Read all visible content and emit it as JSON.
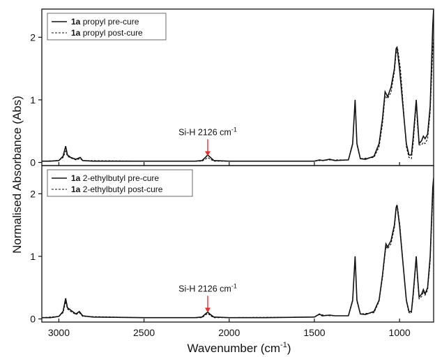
{
  "chart_data": {
    "type": "line",
    "xlabel": "Wavenumber (cm",
    "xlabel_sup": "-1",
    "xlabel_tail": ")",
    "ylabel": "Normalised Absorbance (Abs)",
    "xlim": [
      3100,
      800
    ],
    "x_reversed": true,
    "x_ticks": [
      "3000",
      "2500",
      "2000",
      "1500",
      "1000"
    ],
    "x_tick_values": [
      3000,
      2500,
      2000,
      1500,
      1000
    ],
    "colors": {
      "axis": "#111111",
      "line": "#111111",
      "arrow": "#e03030"
    },
    "panels": [
      {
        "ylim": [
          -0.05,
          2.45
        ],
        "y_ticks": [
          "0",
          "1",
          "2"
        ],
        "y_tick_values": [
          0,
          1,
          2
        ],
        "legend_position": "top-left",
        "legend": [
          {
            "bold": "1a",
            "text": " propyl pre-cure",
            "style": "solid"
          },
          {
            "bold": "1a",
            "text": " propyl post-cure",
            "style": "dashed"
          }
        ],
        "annotation": {
          "label": "Si-H 2126 cm",
          "sup": "-1",
          "x": 2126,
          "y_tip": 0.1,
          "y_tail": 0.37
        },
        "series": [
          {
            "style": "solid",
            "points": [
              [
                3100,
                0.02
              ],
              [
                3050,
                0.02
              ],
              [
                3000,
                0.03
              ],
              [
                2975,
                0.1
              ],
              [
                2960,
                0.26
              ],
              [
                2950,
                0.12
              ],
              [
                2930,
                0.08
              ],
              [
                2900,
                0.05
              ],
              [
                2875,
                0.08
              ],
              [
                2860,
                0.03
              ],
              [
                2800,
                0.02
              ],
              [
                2500,
                0.02
              ],
              [
                2200,
                0.02
              ],
              [
                2160,
                0.03
              ],
              [
                2140,
                0.08
              ],
              [
                2126,
                0.12
              ],
              [
                2110,
                0.08
              ],
              [
                2090,
                0.03
              ],
              [
                2000,
                0.02
              ],
              [
                1800,
                0.02
              ],
              [
                1500,
                0.02
              ],
              [
                1470,
                0.04
              ],
              [
                1450,
                0.03
              ],
              [
                1410,
                0.05
              ],
              [
                1380,
                0.03
              ],
              [
                1300,
                0.04
              ],
              [
                1275,
                0.3
              ],
              [
                1261,
                1.0
              ],
              [
                1250,
                0.3
              ],
              [
                1230,
                0.06
              ],
              [
                1200,
                0.05
              ],
              [
                1150,
                0.1
              ],
              [
                1120,
                0.3
              ],
              [
                1100,
                0.7
              ],
              [
                1085,
                1.13
              ],
              [
                1070,
                1.05
              ],
              [
                1050,
                1.2
              ],
              [
                1030,
                1.5
              ],
              [
                1020,
                1.82
              ],
              [
                1015,
                1.84
              ],
              [
                1000,
                1.5
              ],
              [
                980,
                0.9
              ],
              [
                960,
                0.3
              ],
              [
                945,
                0.12
              ],
              [
                930,
                0.12
              ],
              [
                920,
                0.4
              ],
              [
                910,
                0.72
              ],
              [
                902,
                1.0
              ],
              [
                895,
                0.7
              ],
              [
                885,
                0.3
              ],
              [
                870,
                0.35
              ],
              [
                860,
                0.42
              ],
              [
                850,
                0.38
              ],
              [
                835,
                0.45
              ],
              [
                820,
                0.9
              ],
              [
                805,
                2.2
              ],
              [
                800,
                2.45
              ]
            ]
          },
          {
            "style": "dashed",
            "points": [
              [
                3100,
                0.02
              ],
              [
                3000,
                0.03
              ],
              [
                2975,
                0.08
              ],
              [
                2960,
                0.18
              ],
              [
                2950,
                0.1
              ],
              [
                2930,
                0.07
              ],
              [
                2900,
                0.04
              ],
              [
                2875,
                0.06
              ],
              [
                2860,
                0.03
              ],
              [
                2500,
                0.02
              ],
              [
                2200,
                0.02
              ],
              [
                2160,
                0.02
              ],
              [
                2140,
                0.05
              ],
              [
                2126,
                0.08
              ],
              [
                2110,
                0.05
              ],
              [
                2090,
                0.02
              ],
              [
                1500,
                0.02
              ],
              [
                1470,
                0.03
              ],
              [
                1410,
                0.04
              ],
              [
                1300,
                0.04
              ],
              [
                1275,
                0.28
              ],
              [
                1261,
                0.97
              ],
              [
                1250,
                0.28
              ],
              [
                1230,
                0.06
              ],
              [
                1150,
                0.08
              ],
              [
                1120,
                0.25
              ],
              [
                1100,
                0.62
              ],
              [
                1085,
                1.06
              ],
              [
                1070,
                1.02
              ],
              [
                1050,
                1.12
              ],
              [
                1030,
                1.45
              ],
              [
                1020,
                1.75
              ],
              [
                1010,
                1.8
              ],
              [
                995,
                1.5
              ],
              [
                975,
                0.8
              ],
              [
                960,
                0.25
              ],
              [
                945,
                0.08
              ],
              [
                930,
                0.06
              ],
              [
                920,
                0.3
              ],
              [
                910,
                0.65
              ],
              [
                902,
                0.95
              ],
              [
                895,
                0.62
              ],
              [
                885,
                0.28
              ],
              [
                870,
                0.28
              ],
              [
                860,
                0.32
              ],
              [
                850,
                0.3
              ],
              [
                835,
                0.38
              ],
              [
                820,
                0.8
              ],
              [
                805,
                1.8
              ],
              [
                800,
                2.0
              ]
            ]
          }
        ]
      },
      {
        "ylim": [
          -0.05,
          2.45
        ],
        "y_ticks": [
          "0",
          "1",
          "2"
        ],
        "y_tick_values": [
          0,
          1,
          2
        ],
        "legend_position": "top-left",
        "legend": [
          {
            "bold": "1a",
            "text": " 2-ethylbutyl pre-cure",
            "style": "solid"
          },
          {
            "bold": "1a",
            "text": " 2-ethylbutyl post-cure",
            "style": "dashed"
          }
        ],
        "annotation": {
          "label": "Si-H 2126 cm",
          "sup": "-1",
          "x": 2126,
          "y_tip": 0.1,
          "y_tail": 0.37
        },
        "series": [
          {
            "style": "solid",
            "points": [
              [
                3100,
                0.02
              ],
              [
                3050,
                0.02
              ],
              [
                3000,
                0.04
              ],
              [
                2975,
                0.12
              ],
              [
                2960,
                0.33
              ],
              [
                2950,
                0.18
              ],
              [
                2930,
                0.14
              ],
              [
                2900,
                0.08
              ],
              [
                2880,
                0.12
              ],
              [
                2860,
                0.05
              ],
              [
                2800,
                0.03
              ],
              [
                2500,
                0.02
              ],
              [
                2200,
                0.02
              ],
              [
                2160,
                0.03
              ],
              [
                2140,
                0.08
              ],
              [
                2126,
                0.11
              ],
              [
                2110,
                0.07
              ],
              [
                2090,
                0.03
              ],
              [
                2000,
                0.02
              ],
              [
                1800,
                0.02
              ],
              [
                1500,
                0.03
              ],
              [
                1470,
                0.08
              ],
              [
                1455,
                0.05
              ],
              [
                1410,
                0.06
              ],
              [
                1380,
                0.05
              ],
              [
                1300,
                0.05
              ],
              [
                1275,
                0.3
              ],
              [
                1261,
                1.0
              ],
              [
                1250,
                0.3
              ],
              [
                1230,
                0.08
              ],
              [
                1200,
                0.07
              ],
              [
                1150,
                0.12
              ],
              [
                1120,
                0.3
              ],
              [
                1100,
                0.7
              ],
              [
                1080,
                1.2
              ],
              [
                1070,
                1.15
              ],
              [
                1050,
                1.25
              ],
              [
                1030,
                1.5
              ],
              [
                1020,
                1.78
              ],
              [
                1015,
                1.82
              ],
              [
                1000,
                1.5
              ],
              [
                980,
                0.9
              ],
              [
                960,
                0.3
              ],
              [
                945,
                0.12
              ],
              [
                930,
                0.12
              ],
              [
                920,
                0.4
              ],
              [
                910,
                0.72
              ],
              [
                902,
                1.0
              ],
              [
                895,
                0.7
              ],
              [
                885,
                0.35
              ],
              [
                870,
                0.4
              ],
              [
                860,
                0.47
              ],
              [
                850,
                0.4
              ],
              [
                835,
                0.5
              ],
              [
                820,
                1.0
              ],
              [
                805,
                2.1
              ],
              [
                800,
                2.25
              ]
            ]
          },
          {
            "style": "dashed",
            "points": [
              [
                3100,
                0.02
              ],
              [
                3000,
                0.04
              ],
              [
                2975,
                0.1
              ],
              [
                2960,
                0.28
              ],
              [
                2950,
                0.16
              ],
              [
                2930,
                0.12
              ],
              [
                2900,
                0.07
              ],
              [
                2880,
                0.1
              ],
              [
                2860,
                0.04
              ],
              [
                2500,
                0.02
              ],
              [
                2200,
                0.02
              ],
              [
                2160,
                0.02
              ],
              [
                2140,
                0.06
              ],
              [
                2126,
                0.09
              ],
              [
                2110,
                0.05
              ],
              [
                2090,
                0.02
              ],
              [
                1500,
                0.03
              ],
              [
                1470,
                0.07
              ],
              [
                1410,
                0.05
              ],
              [
                1300,
                0.05
              ],
              [
                1275,
                0.28
              ],
              [
                1261,
                0.97
              ],
              [
                1250,
                0.28
              ],
              [
                1230,
                0.08
              ],
              [
                1150,
                0.1
              ],
              [
                1120,
                0.28
              ],
              [
                1100,
                0.66
              ],
              [
                1080,
                1.16
              ],
              [
                1070,
                1.12
              ],
              [
                1050,
                1.2
              ],
              [
                1030,
                1.46
              ],
              [
                1020,
                1.74
              ],
              [
                1012,
                1.8
              ],
              [
                998,
                1.5
              ],
              [
                978,
                0.85
              ],
              [
                960,
                0.28
              ],
              [
                945,
                0.1
              ],
              [
                930,
                0.09
              ],
              [
                920,
                0.35
              ],
              [
                910,
                0.68
              ],
              [
                902,
                0.97
              ],
              [
                895,
                0.66
              ],
              [
                885,
                0.32
              ],
              [
                870,
                0.36
              ],
              [
                860,
                0.44
              ],
              [
                850,
                0.38
              ],
              [
                835,
                0.46
              ],
              [
                820,
                0.92
              ],
              [
                805,
                1.95
              ],
              [
                800,
                2.1
              ]
            ]
          }
        ]
      }
    ]
  }
}
